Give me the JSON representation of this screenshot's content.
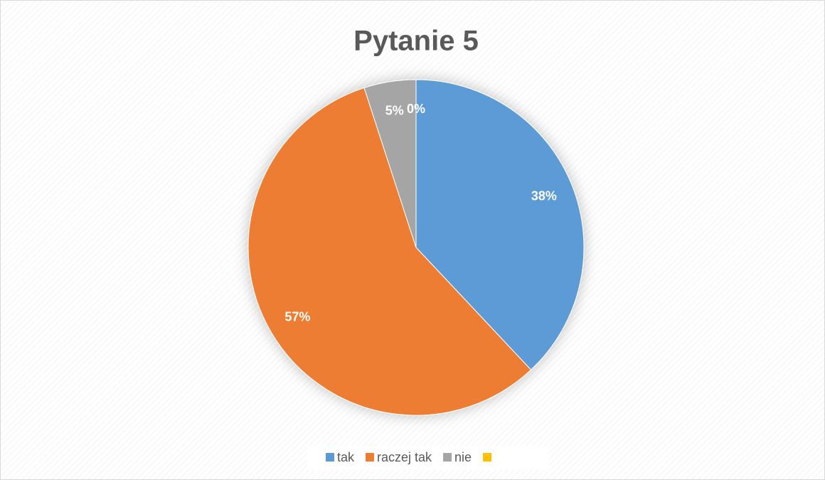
{
  "chart_data": {
    "type": "pie",
    "title": "Pytanie 5",
    "categories": [
      "tak",
      "raczej tak",
      "nie",
      null
    ],
    "values": [
      38,
      57,
      5,
      0
    ],
    "value_labels": [
      "38%",
      "57%",
      "5%",
      "0%"
    ],
    "colors": [
      "#5b9bd5",
      "#ed7d31",
      "#a5a5a5",
      "#ffc000"
    ],
    "legend": "bottom"
  }
}
